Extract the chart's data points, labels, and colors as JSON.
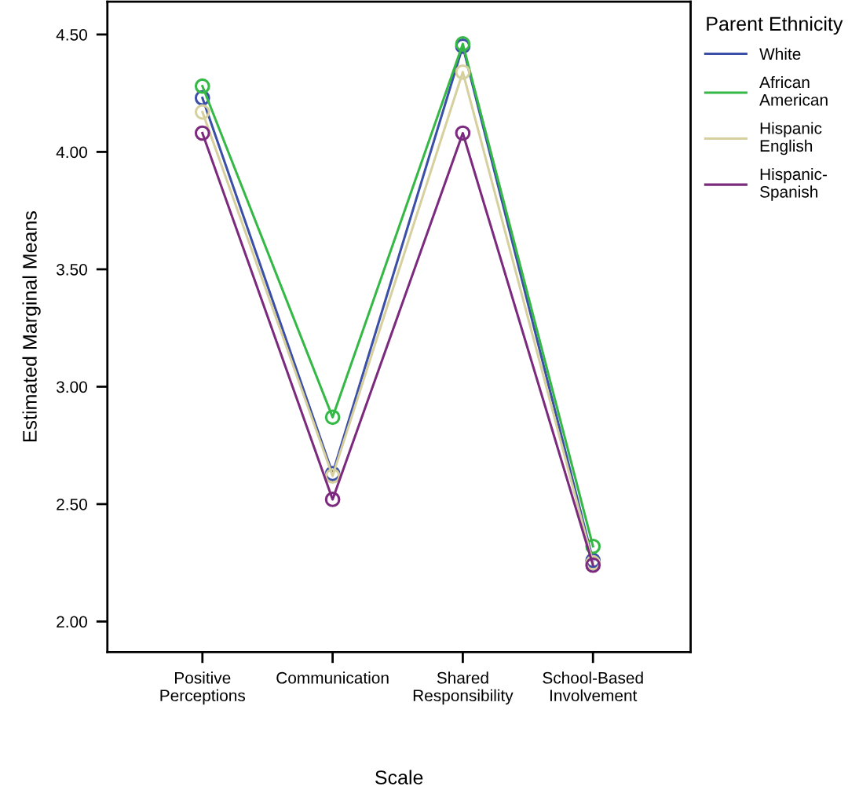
{
  "chart_data": {
    "type": "line",
    "xlabel": "Scale",
    "ylabel": "Estimated Marginal Means",
    "legend_title": "Parent Ethnicity",
    "legend": "right",
    "marker": "circle",
    "line_style": "solid",
    "grid": false,
    "categories": [
      "Positive\nPerceptions",
      "Communication",
      "Shared\nResponsibility",
      "School-Based\nInvolvement"
    ],
    "ylim": [
      1.87,
      4.64
    ],
    "yticks": [
      {
        "value": 2,
        "label": "2.00"
      },
      {
        "value": 2.5,
        "label": "2.50"
      },
      {
        "value": 3,
        "label": "3.00"
      },
      {
        "value": 3.5,
        "label": "3.50"
      },
      {
        "value": 4,
        "label": "4.00"
      },
      {
        "value": 4.5,
        "label": "4.50"
      }
    ],
    "series": [
      {
        "name": "White",
        "color": "#3c4fa8",
        "values": [
          4.23,
          2.63,
          4.45,
          2.26
        ]
      },
      {
        "name": "African\nAmerican",
        "color": "#35b846",
        "values": [
          4.28,
          2.87,
          4.46,
          2.32
        ]
      },
      {
        "name": "Hispanic\nEnglish",
        "color": "#d6d09e",
        "values": [
          4.17,
          2.62,
          4.34,
          2.25
        ]
      },
      {
        "name": "Hispanic-\nSpanish",
        "color": "#7b2a7e",
        "values": [
          4.08,
          2.52,
          4.08,
          2.24
        ]
      }
    ]
  }
}
